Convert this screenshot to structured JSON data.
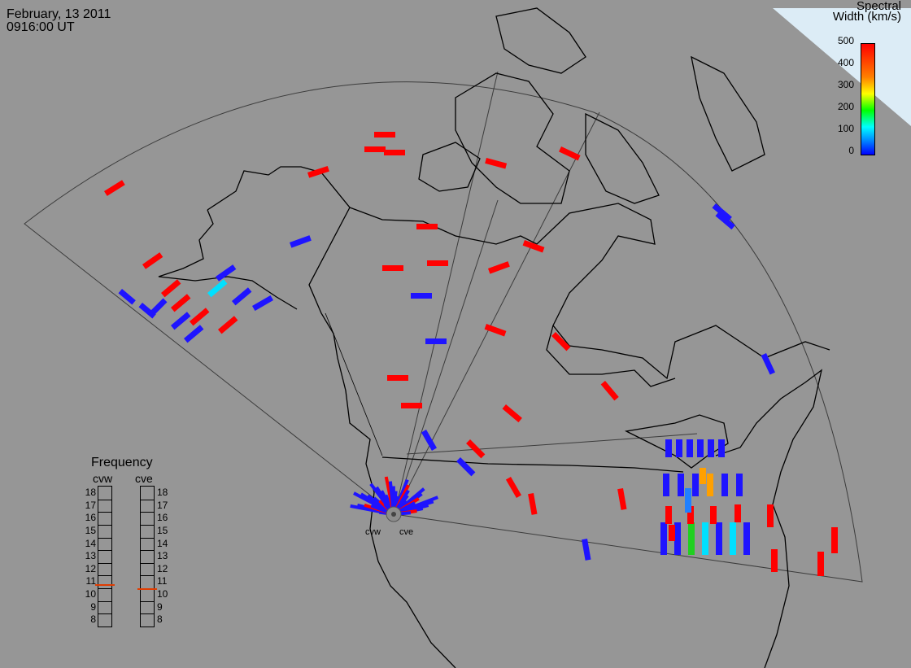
{
  "header": {
    "date": "February, 13 2011",
    "time": "0916:00 UT"
  },
  "colorbar": {
    "title_line1": "Spectral",
    "title_line2": "Width (km/s)",
    "ticks": [
      "500",
      "400",
      "300",
      "200",
      "100",
      "0"
    ],
    "colors": [
      "#ff0000",
      "#ff7f00",
      "#ffff00",
      "#00ff00",
      "#00ffff",
      "#0000ff"
    ]
  },
  "frequency": {
    "title": "Frequency",
    "radars": [
      "cvw",
      "cve"
    ],
    "scale": [
      "18",
      "17",
      "16",
      "15",
      "14",
      "13",
      "12",
      "11",
      "10",
      "9",
      "8"
    ],
    "cvw_value_mhz": 10.8,
    "cve_value_mhz": 10.5,
    "marker_color": "#e03c00"
  },
  "sites": {
    "west": "cvw",
    "east": "cve"
  },
  "colors": {
    "background": "#969696",
    "land_outline": "#000000",
    "fov_outline": "#3c3c3c",
    "greenland_fill": "#dcecf6",
    "high_width": "#ff0000",
    "low_width": "#1e14ff"
  }
}
